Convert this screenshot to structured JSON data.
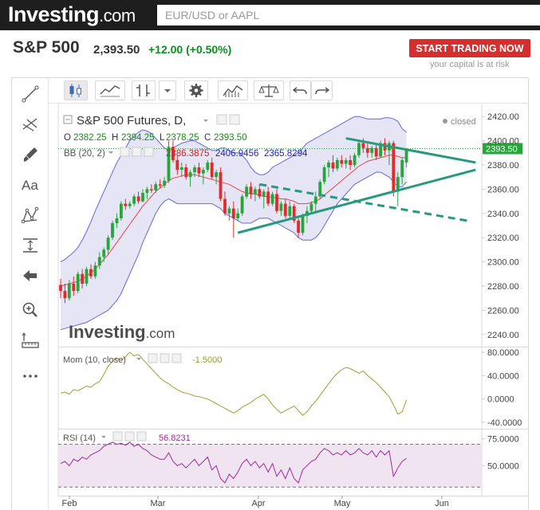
{
  "header": {
    "logo_text": "Investing",
    "logo_suffix": ".com",
    "search_placeholder": "EUR/USD or AAPL"
  },
  "instrument": {
    "name": "S&P 500",
    "price": "2,393.50",
    "change": "+12.00 (+0.50%)",
    "cta_label": "START TRADING NOW",
    "risk_note": "your capital is at risk"
  },
  "colors": {
    "up_candle": "#26a539",
    "down_candle": "#e32a2a",
    "bb_fill": "#dcdcf3",
    "bb_band": "#6666dd",
    "bb_basis": "#e04848",
    "trendline": "#26997f",
    "momentum": "#a0a030",
    "rsi": "#9b2c9b",
    "rsi_fill": "#f1e4f1",
    "cta": "#d62d2d",
    "positive": "#0a8f1e"
  },
  "left_tools": [
    "trend-line-icon",
    "fib-icon",
    "brush-icon",
    "text-icon",
    "pattern-icon",
    "measure-icon",
    "back-arrow-icon",
    "zoom-icon",
    "ruler-icon",
    "more-icon"
  ],
  "top_tools": [
    "candles-icon",
    "indicators-icon",
    "bar-type-icon",
    "dropdown-icon",
    "settings-icon",
    "studies-icon",
    "compare-icon",
    "undo-icon",
    "redo-icon"
  ],
  "main_legend": {
    "title": "S&P 500 Futures, D,",
    "status": "closed",
    "o_label": "O",
    "o_value": "2382.25",
    "h_label": "H",
    "h_value": "2394.25",
    "l_label": "L",
    "l_value": "2378.25",
    "c_label": "C",
    "c_value": "2393.50",
    "bb_label": "BB (20, 2)",
    "bb_basis": "2386.3875",
    "bb_upper": "2406.9456",
    "bb_lower": "2365.8294",
    "last_price": "2393.50",
    "watermark": "Investing",
    "watermark_suffix": ".com"
  },
  "mom_legend": {
    "label": "Mom (10, close)",
    "value": "-1.5000"
  },
  "rsi_legend": {
    "label": "RSI (14)",
    "value": "56.8231"
  },
  "chart_data": {
    "type": "candlestick",
    "x_tick_labels": [
      "Feb",
      "Mar",
      "Apr",
      "May",
      "Jun"
    ],
    "price_axis": {
      "range": [
        2230,
        2430
      ],
      "ticks": [
        "2420.00",
        "2400.00",
        "2380.00",
        "2360.00",
        "2340.00",
        "2320.00",
        "2300.00",
        "2280.00",
        "2260.00",
        "2240.00"
      ]
    },
    "candles": [
      {
        "o": 2281,
        "h": 2286,
        "l": 2270,
        "c": 2276
      },
      {
        "o": 2276,
        "h": 2282,
        "l": 2266,
        "c": 2270
      },
      {
        "o": 2270,
        "h": 2285,
        "l": 2268,
        "c": 2282
      },
      {
        "o": 2282,
        "h": 2288,
        "l": 2272,
        "c": 2276
      },
      {
        "o": 2276,
        "h": 2292,
        "l": 2274,
        "c": 2290
      },
      {
        "o": 2290,
        "h": 2294,
        "l": 2278,
        "c": 2282
      },
      {
        "o": 2282,
        "h": 2296,
        "l": 2280,
        "c": 2294
      },
      {
        "o": 2294,
        "h": 2298,
        "l": 2286,
        "c": 2288
      },
      {
        "o": 2288,
        "h": 2300,
        "l": 2286,
        "c": 2297
      },
      {
        "o": 2297,
        "h": 2308,
        "l": 2294,
        "c": 2304
      },
      {
        "o": 2304,
        "h": 2312,
        "l": 2300,
        "c": 2310
      },
      {
        "o": 2310,
        "h": 2322,
        "l": 2306,
        "c": 2320
      },
      {
        "o": 2320,
        "h": 2334,
        "l": 2318,
        "c": 2332
      },
      {
        "o": 2332,
        "h": 2340,
        "l": 2328,
        "c": 2336
      },
      {
        "o": 2336,
        "h": 2350,
        "l": 2334,
        "c": 2348
      },
      {
        "o": 2348,
        "h": 2352,
        "l": 2343,
        "c": 2346
      },
      {
        "o": 2346,
        "h": 2350,
        "l": 2344,
        "c": 2348
      },
      {
        "o": 2348,
        "h": 2356,
        "l": 2346,
        "c": 2354
      },
      {
        "o": 2354,
        "h": 2358,
        "l": 2348,
        "c": 2350
      },
      {
        "o": 2350,
        "h": 2360,
        "l": 2349,
        "c": 2357
      },
      {
        "o": 2357,
        "h": 2362,
        "l": 2352,
        "c": 2360
      },
      {
        "o": 2360,
        "h": 2364,
        "l": 2357,
        "c": 2359
      },
      {
        "o": 2359,
        "h": 2366,
        "l": 2357,
        "c": 2364
      },
      {
        "o": 2364,
        "h": 2368,
        "l": 2361,
        "c": 2363
      },
      {
        "o": 2363,
        "h": 2370,
        "l": 2361,
        "c": 2367
      },
      {
        "o": 2367,
        "h": 2400,
        "l": 2365,
        "c": 2395
      },
      {
        "o": 2395,
        "h": 2400,
        "l": 2382,
        "c": 2384
      },
      {
        "o": 2384,
        "h": 2388,
        "l": 2372,
        "c": 2376
      },
      {
        "o": 2376,
        "h": 2382,
        "l": 2370,
        "c": 2378
      },
      {
        "o": 2378,
        "h": 2381,
        "l": 2368,
        "c": 2370
      },
      {
        "o": 2370,
        "h": 2376,
        "l": 2362,
        "c": 2374
      },
      {
        "o": 2374,
        "h": 2380,
        "l": 2370,
        "c": 2378
      },
      {
        "o": 2378,
        "h": 2382,
        "l": 2370,
        "c": 2373
      },
      {
        "o": 2373,
        "h": 2378,
        "l": 2364,
        "c": 2376
      },
      {
        "o": 2376,
        "h": 2384,
        "l": 2374,
        "c": 2382
      },
      {
        "o": 2382,
        "h": 2386,
        "l": 2368,
        "c": 2370
      },
      {
        "o": 2370,
        "h": 2376,
        "l": 2364,
        "c": 2374
      },
      {
        "o": 2374,
        "h": 2378,
        "l": 2350,
        "c": 2352
      },
      {
        "o": 2352,
        "h": 2358,
        "l": 2338,
        "c": 2340
      },
      {
        "o": 2340,
        "h": 2346,
        "l": 2334,
        "c": 2344
      },
      {
        "o": 2344,
        "h": 2350,
        "l": 2320,
        "c": 2336
      },
      {
        "o": 2336,
        "h": 2344,
        "l": 2334,
        "c": 2340
      },
      {
        "o": 2340,
        "h": 2356,
        "l": 2338,
        "c": 2354
      },
      {
        "o": 2354,
        "h": 2364,
        "l": 2352,
        "c": 2362
      },
      {
        "o": 2362,
        "h": 2366,
        "l": 2352,
        "c": 2356
      },
      {
        "o": 2356,
        "h": 2362,
        "l": 2350,
        "c": 2360
      },
      {
        "o": 2360,
        "h": 2364,
        "l": 2352,
        "c": 2354
      },
      {
        "o": 2354,
        "h": 2360,
        "l": 2344,
        "c": 2358
      },
      {
        "o": 2358,
        "h": 2362,
        "l": 2346,
        "c": 2348
      },
      {
        "o": 2348,
        "h": 2358,
        "l": 2346,
        "c": 2356
      },
      {
        "o": 2356,
        "h": 2360,
        "l": 2340,
        "c": 2342
      },
      {
        "o": 2342,
        "h": 2350,
        "l": 2338,
        "c": 2348
      },
      {
        "o": 2348,
        "h": 2352,
        "l": 2336,
        "c": 2338
      },
      {
        "o": 2338,
        "h": 2350,
        "l": 2336,
        "c": 2346
      },
      {
        "o": 2346,
        "h": 2348,
        "l": 2332,
        "c": 2334
      },
      {
        "o": 2334,
        "h": 2336,
        "l": 2320,
        "c": 2324
      },
      {
        "o": 2324,
        "h": 2340,
        "l": 2322,
        "c": 2338
      },
      {
        "o": 2338,
        "h": 2346,
        "l": 2332,
        "c": 2342
      },
      {
        "o": 2342,
        "h": 2350,
        "l": 2340,
        "c": 2348
      },
      {
        "o": 2348,
        "h": 2358,
        "l": 2340,
        "c": 2354
      },
      {
        "o": 2354,
        "h": 2368,
        "l": 2352,
        "c": 2366
      },
      {
        "o": 2366,
        "h": 2380,
        "l": 2364,
        "c": 2378
      },
      {
        "o": 2378,
        "h": 2384,
        "l": 2370,
        "c": 2382
      },
      {
        "o": 2382,
        "h": 2388,
        "l": 2374,
        "c": 2377
      },
      {
        "o": 2377,
        "h": 2386,
        "l": 2375,
        "c": 2384
      },
      {
        "o": 2384,
        "h": 2388,
        "l": 2378,
        "c": 2381
      },
      {
        "o": 2381,
        "h": 2386,
        "l": 2377,
        "c": 2384
      },
      {
        "o": 2384,
        "h": 2388,
        "l": 2376,
        "c": 2380
      },
      {
        "o": 2380,
        "h": 2390,
        "l": 2378,
        "c": 2388
      },
      {
        "o": 2388,
        "h": 2400,
        "l": 2386,
        "c": 2398
      },
      {
        "o": 2398,
        "h": 2402,
        "l": 2390,
        "c": 2394
      },
      {
        "o": 2394,
        "h": 2398,
        "l": 2386,
        "c": 2390
      },
      {
        "o": 2390,
        "h": 2396,
        "l": 2386,
        "c": 2394
      },
      {
        "o": 2394,
        "h": 2398,
        "l": 2384,
        "c": 2387
      },
      {
        "o": 2387,
        "h": 2400,
        "l": 2386,
        "c": 2398
      },
      {
        "o": 2398,
        "h": 2402,
        "l": 2388,
        "c": 2392
      },
      {
        "o": 2392,
        "h": 2400,
        "l": 2380,
        "c": 2398
      },
      {
        "o": 2398,
        "h": 2400,
        "l": 2354,
        "c": 2358
      },
      {
        "o": 2358,
        "h": 2374,
        "l": 2346,
        "c": 2370
      },
      {
        "o": 2370,
        "h": 2386,
        "l": 2364,
        "c": 2384
      },
      {
        "o": 2382,
        "h": 2394,
        "l": 2378,
        "c": 2393
      }
    ],
    "bollinger": {
      "upper": [
        2300,
        2302,
        2305,
        2308,
        2312,
        2318,
        2325,
        2333,
        2342,
        2350,
        2358,
        2366,
        2374,
        2382,
        2388,
        2394,
        2400,
        2404,
        2407,
        2409,
        2408,
        2406,
        2402,
        2398,
        2394,
        2392,
        2394,
        2396,
        2398,
        2399,
        2400,
        2400,
        2398,
        2396,
        2394,
        2392,
        2392,
        2394,
        2394,
        2392,
        2390,
        2390,
        2388,
        2384,
        2378,
        2374,
        2372,
        2372,
        2374,
        2378,
        2380,
        2382,
        2384,
        2386,
        2388,
        2390,
        2394,
        2398,
        2400,
        2402,
        2404,
        2406,
        2408,
        2410,
        2412,
        2414,
        2416,
        2418,
        2420,
        2420,
        2419,
        2418,
        2418,
        2418,
        2418,
        2419,
        2419,
        2418,
        2416,
        2410,
        2407
      ],
      "basis": [
        2280,
        2281,
        2282,
        2283,
        2284,
        2286,
        2288,
        2291,
        2294,
        2298,
        2302,
        2306,
        2311,
        2316,
        2321,
        2326,
        2331,
        2336,
        2341,
        2346,
        2350,
        2354,
        2358,
        2361,
        2364,
        2367,
        2369,
        2370,
        2371,
        2372,
        2372,
        2372,
        2371,
        2370,
        2369,
        2368,
        2367,
        2366,
        2365,
        2364,
        2362,
        2360,
        2358,
        2357,
        2356,
        2356,
        2355,
        2354,
        2354,
        2353,
        2353,
        2352,
        2352,
        2351,
        2350,
        2348,
        2348,
        2348,
        2349,
        2350,
        2352,
        2355,
        2358,
        2361,
        2364,
        2367,
        2370,
        2373,
        2376,
        2379,
        2381,
        2383,
        2384,
        2385,
        2386,
        2387,
        2388,
        2388,
        2387,
        2386,
        2386
      ],
      "lower": [
        2244,
        2245,
        2246,
        2247,
        2248,
        2249,
        2250,
        2252,
        2254,
        2256,
        2258,
        2260,
        2264,
        2268,
        2274,
        2282,
        2290,
        2298,
        2306,
        2316,
        2324,
        2332,
        2340,
        2346,
        2350,
        2352,
        2350,
        2348,
        2348,
        2348,
        2348,
        2348,
        2348,
        2348,
        2348,
        2348,
        2346,
        2344,
        2340,
        2338,
        2336,
        2334,
        2332,
        2332,
        2332,
        2334,
        2336,
        2336,
        2336,
        2334,
        2332,
        2330,
        2328,
        2326,
        2324,
        2320,
        2318,
        2318,
        2318,
        2320,
        2324,
        2330,
        2336,
        2342,
        2348,
        2352,
        2356,
        2360,
        2364,
        2366,
        2368,
        2370,
        2372,
        2374,
        2374,
        2372,
        2370,
        2366,
        2362,
        2362,
        2366
      ]
    },
    "trendlines": [
      {
        "style": "solid",
        "points": [
          [
            66,
            2402
          ],
          [
            96,
            2382
          ]
        ]
      },
      {
        "style": "solid",
        "points": [
          [
            41,
            2324
          ],
          [
            96,
            2376
          ]
        ]
      },
      {
        "style": "dashed",
        "points": [
          [
            46,
            2364
          ],
          [
            94,
            2334
          ]
        ]
      }
    ],
    "momentum": {
      "range": [
        -40,
        80
      ],
      "ticks": [
        "80.0000",
        "40.0000",
        "0.0000",
        "-40.0000"
      ],
      "values": [
        10,
        12,
        8,
        16,
        14,
        18,
        22,
        20,
        26,
        30,
        42,
        56,
        64,
        70,
        66,
        72,
        80,
        74,
        76,
        68,
        60,
        52,
        44,
        36,
        30,
        26,
        20,
        16,
        12,
        10,
        8,
        5,
        4,
        2,
        0,
        -4,
        -8,
        -12,
        -16,
        -20,
        -24,
        -20,
        -14,
        -10,
        -6,
        0,
        4,
        8,
        0,
        -10,
        -18,
        -24,
        -20,
        -16,
        -12,
        -20,
        -28,
        -22,
        -12,
        -4,
        6,
        16,
        26,
        36,
        44,
        50,
        54,
        52,
        48,
        44,
        48,
        40,
        34,
        28,
        20,
        12,
        4,
        -10,
        -26,
        -22,
        -1.5
      ]
    },
    "rsi": {
      "range": [
        25,
        80
      ],
      "ticks": [
        "75.0000",
        "50.0000"
      ],
      "band": [
        30,
        70
      ],
      "values": [
        52,
        54,
        50,
        56,
        54,
        58,
        56,
        60,
        62,
        64,
        68,
        70,
        72,
        70,
        71,
        69,
        72,
        68,
        70,
        66,
        64,
        60,
        58,
        56,
        56,
        62,
        54,
        50,
        52,
        48,
        52,
        56,
        50,
        54,
        58,
        46,
        50,
        38,
        34,
        42,
        38,
        44,
        52,
        56,
        50,
        54,
        48,
        52,
        44,
        52,
        40,
        46,
        38,
        48,
        38,
        34,
        46,
        50,
        54,
        56,
        62,
        66,
        64,
        60,
        62,
        60,
        64,
        60,
        62,
        66,
        62,
        60,
        64,
        58,
        64,
        60,
        64,
        40,
        48,
        54,
        56.8
      ]
    }
  }
}
